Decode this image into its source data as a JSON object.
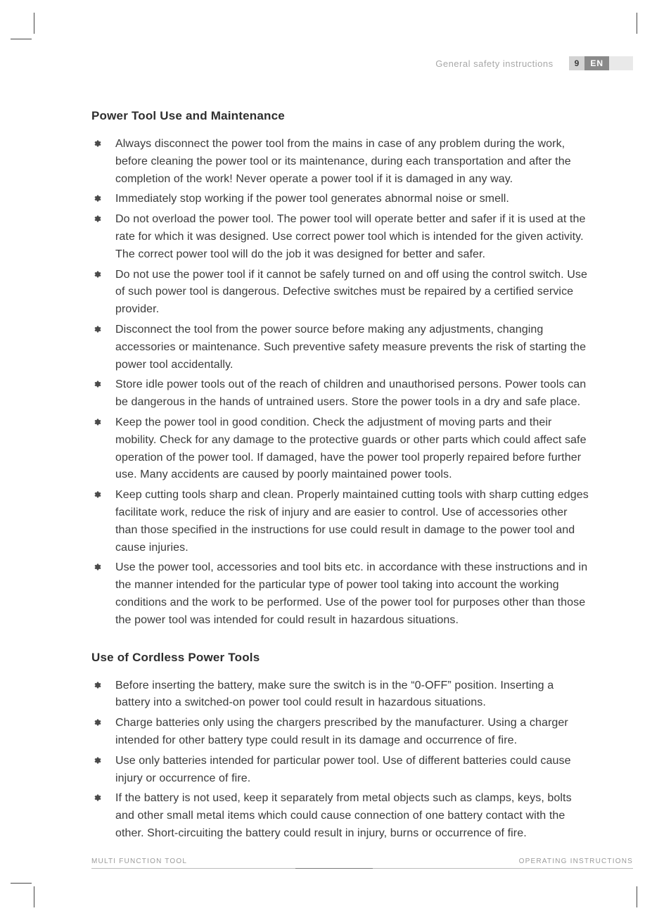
{
  "header": {
    "section_label": "General safety instructions",
    "page_number": "9",
    "language": "EN"
  },
  "sections": [
    {
      "title": "Power Tool Use and Maintenance",
      "items": [
        "Always disconnect the power tool from the mains in case of any problem during the work, before cleaning the power tool or its maintenance, during each transportation and after the completion of the work! Never operate a power tool if it is damaged in any way.",
        "Immediately stop working if the power tool generates abnormal noise or smell.",
        "Do not overload the power tool. The power tool will operate better and safer if it is used at the rate for which it was designed. Use correct power tool which is intended for the given activity. The correct power tool will do the job it was designed for better and safer.",
        "Do not use the power tool if it cannot be safely turned on and off using the control switch. Use of such power tool is dangerous. Defective switches must be repaired by a certified service provider.",
        "Disconnect the tool from the power source before making any adjustments, changing accessories or maintenance. Such preventive safety measure prevents the risk of starting the power tool accidentally.",
        "Store idle power tools out of the reach of children and unauthorised persons. Power tools can be dangerous in the hands of untrained users. Store the power tools in a dry and safe place.",
        "Keep the power tool in good condition. Check the adjustment of moving parts and their mobility. Check for any damage to the protective guards or other parts which could affect safe operation of the power tool. If damaged, have the power tool properly repaired before further use. Many accidents are caused by poorly maintained power tools.",
        "Keep cutting tools sharp and clean. Properly maintained cutting tools with sharp cutting edges facilitate work, reduce the risk of injury and are easier to control. Use of accessories other than those specified in the instructions for use could result in damage to the power tool and cause injuries.",
        "Use the power tool, accessories and tool bits etc. in accordance with these instructions and in the manner intended for the particular type of power tool taking into account the working conditions and the work to be performed. Use of the power tool for purposes other than those the power tool was intended for could result in hazardous situations."
      ]
    },
    {
      "title": "Use of Cordless Power Tools",
      "items": [
        "Before inserting the battery, make sure the switch is in the “0-OFF” position. Inserting a battery into a switched-on power tool could result in hazardous situations.",
        "Charge batteries only using the chargers prescribed by the manufacturer. Using a charger intended for other battery type could result in its damage and occurrence of fire.",
        "Use only batteries intended for particular power tool. Use of different batteries could cause injury or occurrence of fire.",
        "If the battery is not used, keep it separately from metal objects such as clamps, keys, bolts and other small metal items which could cause connection of one battery contact with the other. Short-circuiting the battery could result in injury, burns or occurrence of fire."
      ]
    }
  ],
  "footer": {
    "left": "MULTI FUNCTION TOOL",
    "right": "OPERATING INSTRUCTIONS"
  },
  "style": {
    "bullet_color": "#4a4a4a",
    "text_color": "#3a3a3a",
    "muted_color": "#a8a8a8",
    "pagebox_bg": "#d3d3d3",
    "langbox_bg": "#8a8a8a"
  }
}
